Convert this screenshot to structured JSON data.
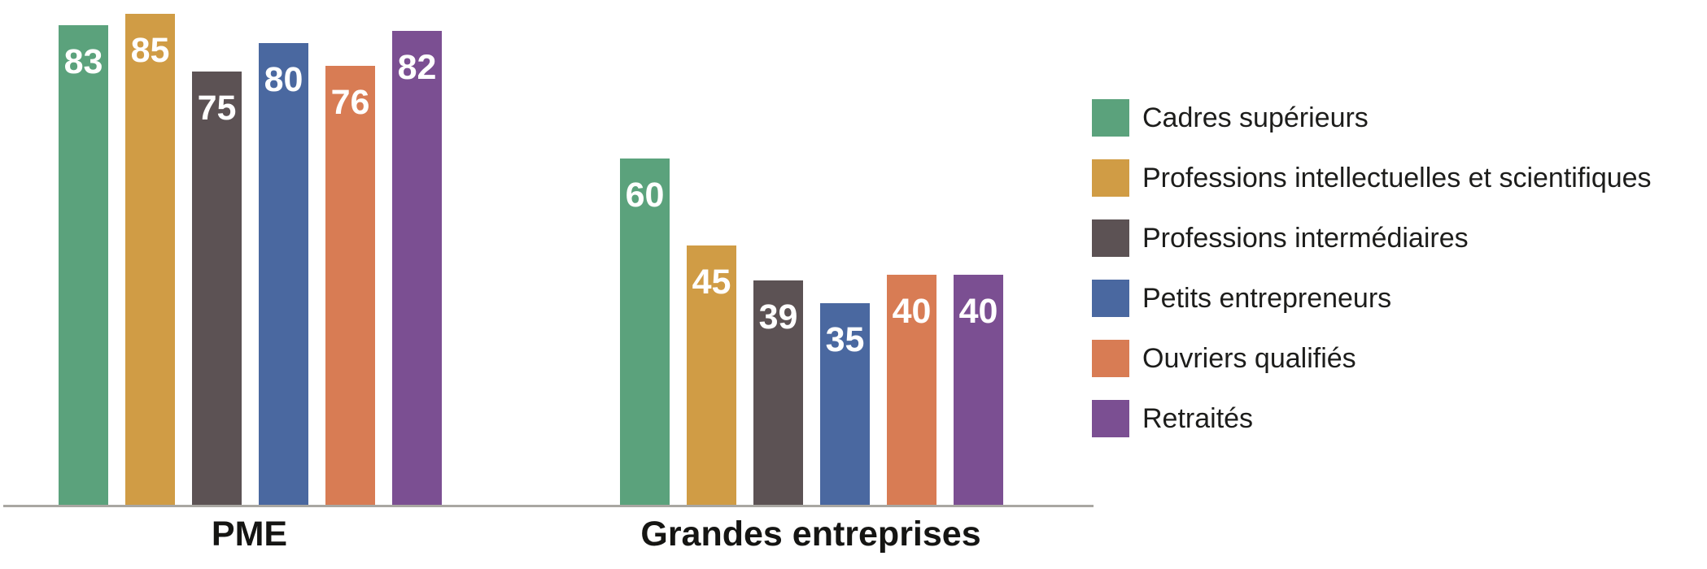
{
  "chart_data": {
    "type": "bar",
    "title": "",
    "categories": [
      "PME",
      "Grandes entreprises"
    ],
    "series": [
      {
        "name": "Cadres supérieurs",
        "color": "#5ba27c",
        "values": [
          83,
          60
        ]
      },
      {
        "name": "Professions intellectuelles et scientifiques",
        "color": "#d09c45",
        "values": [
          85,
          45
        ]
      },
      {
        "name": "Professions intermédiaires",
        "color": "#5c5254",
        "values": [
          75,
          39
        ]
      },
      {
        "name": "Petits entrepreneurs",
        "color": "#4a68a0",
        "values": [
          80,
          35
        ]
      },
      {
        "name": "Ouvriers qualifiés",
        "color": "#d87c54",
        "values": [
          76,
          40
        ]
      },
      {
        "name": "Retraités",
        "color": "#7b4f92",
        "values": [
          82,
          40
        ]
      }
    ],
    "xlabel": "",
    "ylabel": "",
    "ylim": [
      0,
      87.4
    ],
    "grid": false,
    "value_labels": true,
    "value_label_color": "#ffffff",
    "legend_position": "right",
    "axis_line_color": "#a9a7a2",
    "category_label_color": "#151513",
    "legend_text_color": "#1d1d1b"
  }
}
